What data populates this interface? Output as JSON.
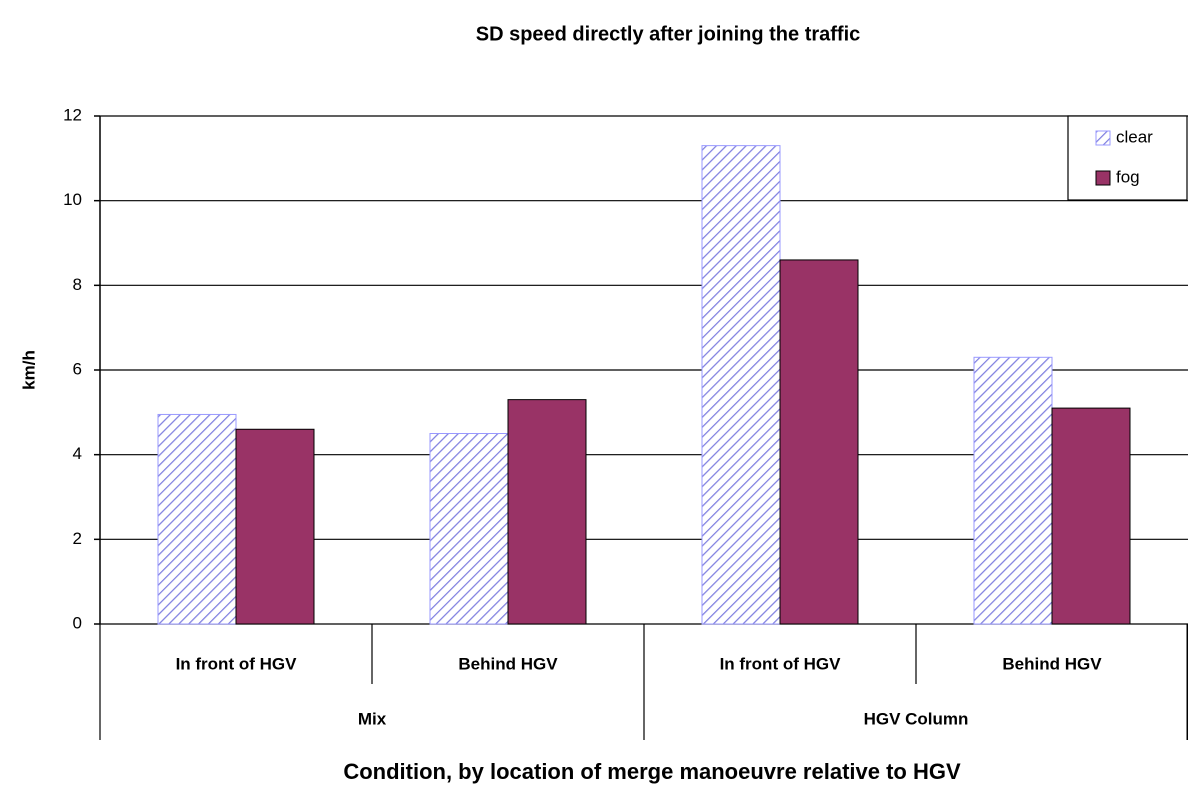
{
  "chart_data": {
    "type": "bar",
    "title": "SD speed directly after joining the traffic",
    "x_label": "Condition, by location of merge manoeuvre relative to HGV",
    "y_label": "km/h",
    "groups": [
      {
        "name": "Mix",
        "categories": [
          "In front of HGV",
          "Behind HGV"
        ]
      },
      {
        "name": "HGV Column",
        "categories": [
          "In front of HGV",
          "Behind HGV"
        ]
      }
    ],
    "series": [
      {
        "name": "clear",
        "color": "#9999ff",
        "hatch": true,
        "values": [
          4.95,
          4.5,
          11.3,
          6.3
        ]
      },
      {
        "name": "fog",
        "color": "#993366",
        "hatch": false,
        "values": [
          4.6,
          5.3,
          8.6,
          5.1
        ]
      }
    ],
    "ylim": [
      0,
      12
    ],
    "yticks": [
      0,
      2,
      4,
      6,
      8,
      10,
      12
    ],
    "grid": true,
    "legend": "upper right"
  }
}
